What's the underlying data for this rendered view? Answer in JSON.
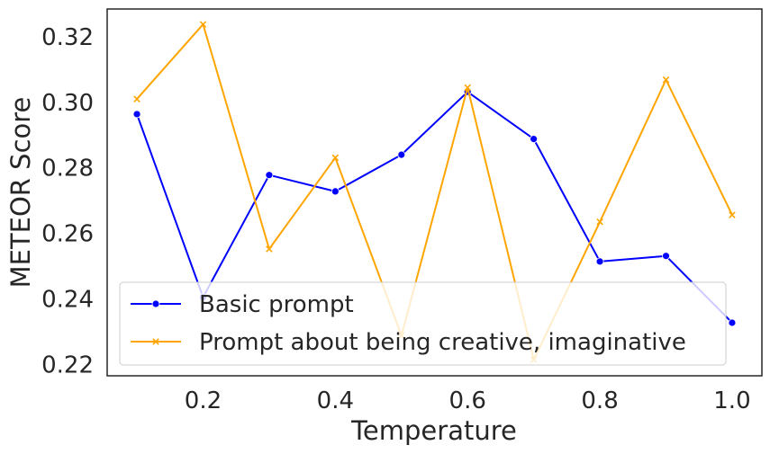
{
  "chart_data": {
    "type": "line",
    "xlabel": "Temperature",
    "ylabel": "METEOR Score",
    "xlim": [
      0.055,
      1.045
    ],
    "ylim": [
      0.2165,
      0.3285
    ],
    "xticks": [
      "0.2",
      "0.4",
      "0.6",
      "0.8",
      "1.0"
    ],
    "yticks": [
      "0.22",
      "0.24",
      "0.26",
      "0.28",
      "0.30",
      "0.32"
    ],
    "grid": false,
    "legend_position": "lower-left",
    "x": [
      0.1,
      0.2,
      0.3,
      0.4,
      0.5,
      0.6,
      0.7,
      0.8,
      0.9,
      1.0
    ],
    "series": [
      {
        "name": "Basic prompt",
        "color": "#0000ff",
        "marker": "circle",
        "values": [
          0.2964,
          0.2405,
          0.2778,
          0.2728,
          0.284,
          0.3032,
          0.2888,
          0.2514,
          0.2531,
          0.2327
        ]
      },
      {
        "name": "Prompt about being creative, imaginative",
        "color": "#ffa500",
        "marker": "x",
        "values": [
          0.301,
          0.3238,
          0.2552,
          0.2831,
          0.2288,
          0.3045,
          0.2214,
          0.2635,
          0.3069,
          0.2656
        ]
      }
    ]
  }
}
